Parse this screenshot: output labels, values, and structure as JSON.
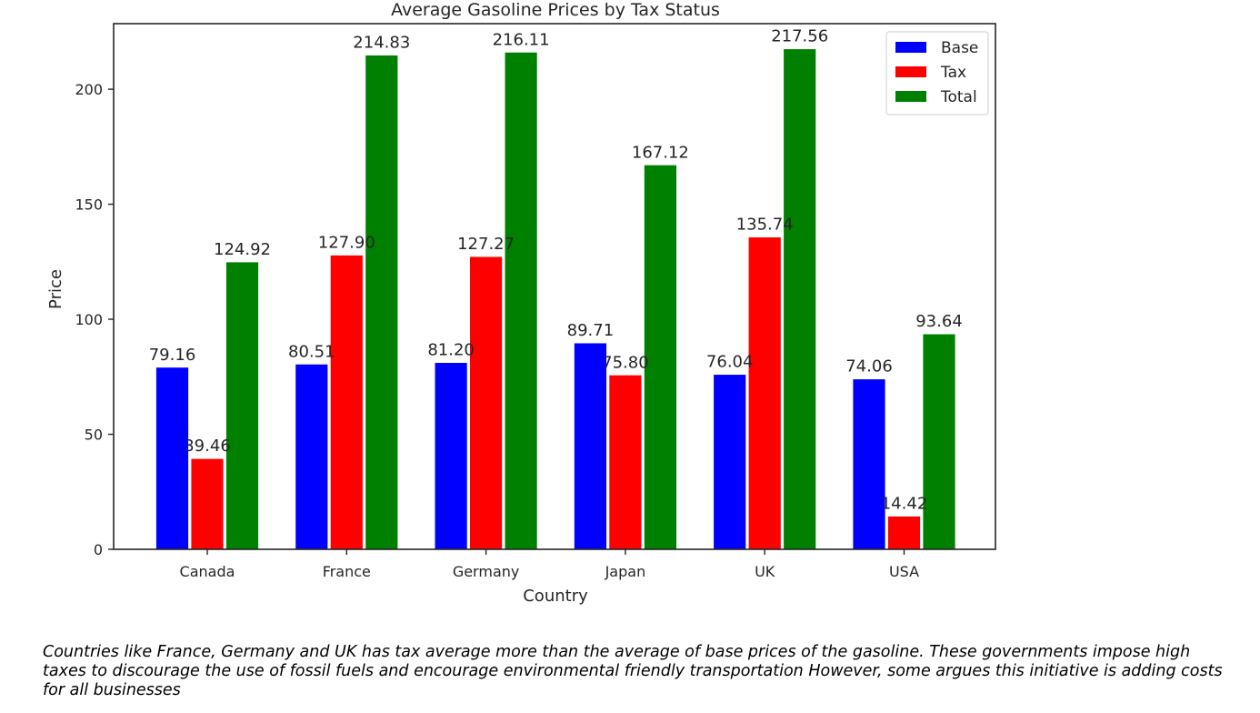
{
  "chart_data": {
    "type": "bar",
    "title": "Average Gasoline Prices by Tax Status",
    "xlabel": "Country",
    "ylabel": "Price",
    "categories": [
      "Canada",
      "France",
      "Germany",
      "Japan",
      "UK",
      "USA"
    ],
    "series": [
      {
        "name": "Base",
        "color": "#0000ff",
        "values": [
          79.16,
          80.51,
          81.2,
          89.71,
          76.04,
          74.06
        ]
      },
      {
        "name": "Tax",
        "color": "#ff0000",
        "values": [
          39.46,
          127.9,
          127.27,
          75.8,
          135.74,
          14.42
        ]
      },
      {
        "name": "Total",
        "color": "#008000",
        "values": [
          124.92,
          214.83,
          216.11,
          167.12,
          217.56,
          93.64
        ]
      }
    ],
    "ylim": [
      0,
      228.5
    ],
    "yticks": [
      0,
      50,
      100,
      150,
      200
    ],
    "legend_position": "top-right",
    "grid": false
  },
  "caption": "Countries like France, Germany and UK has tax average more than the average of base prices of the gasoline. These governments impose high taxes to discourage the use of fossil fuels and encourage environmental friendly transportation However, some argues this initiative is adding costs for all businesses"
}
